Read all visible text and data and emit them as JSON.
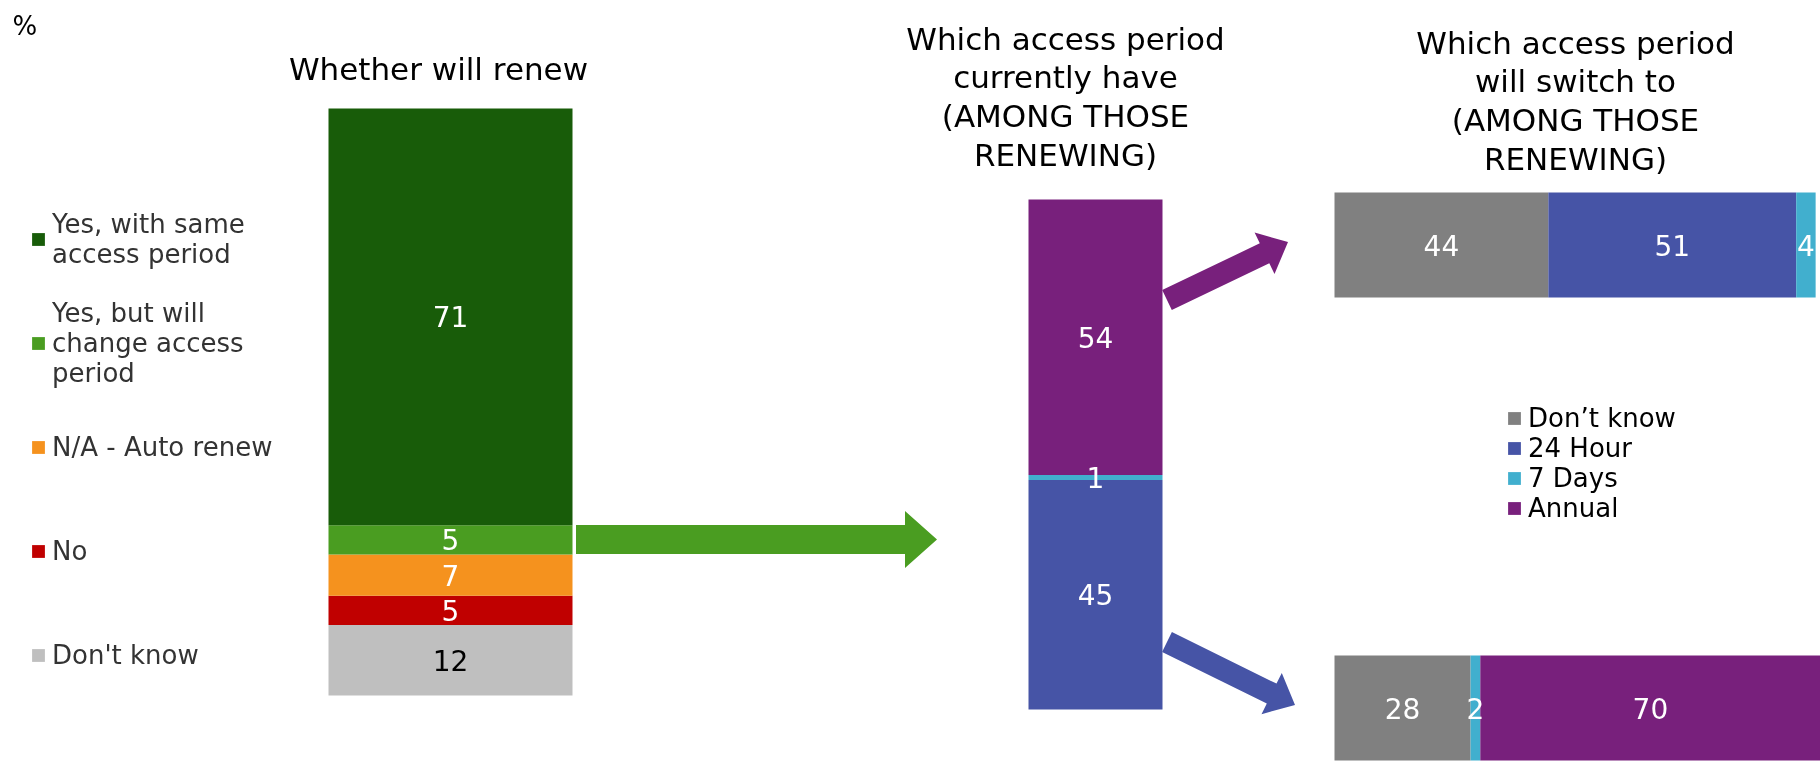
{
  "chart_data": [
    {
      "type": "bar",
      "title": "Whether will renew",
      "categories": [
        null
      ],
      "stacked": true,
      "series": [
        {
          "name": "Don't know",
          "color": "#bfbfbf",
          "values": [
            12
          ]
        },
        {
          "name": "No",
          "color": "#c00000",
          "values": [
            5
          ]
        },
        {
          "name": "N/A - Auto renew",
          "color": "#f5921e",
          "values": [
            7
          ]
        },
        {
          "name": "Yes, but will change access period",
          "color": "#4a9d21",
          "values": [
            5
          ]
        },
        {
          "name": "Yes, with same access period",
          "color": "#185c09",
          "values": [
            71
          ]
        }
      ],
      "data_labels": true,
      "legend": "left",
      "tick_labels": false,
      "annotations": [
        "%"
      ]
    },
    {
      "type": "bar",
      "title": "Which access period currently have (AMONG THOSE RENEWING)",
      "categories": [
        null
      ],
      "stacked": true,
      "series": [
        {
          "color": "#4654a6",
          "values": [
            45
          ]
        },
        {
          "color": "#41afce",
          "values": [
            1
          ]
        },
        {
          "color": "#78207c",
          "values": [
            54
          ]
        }
      ],
      "data_labels": true,
      "tick_labels": false
    },
    {
      "type": "bar",
      "orientation": "horizontal",
      "title": "Which access period will switch to (AMONG THOSE RENEWING)",
      "categories": [
        null,
        null
      ],
      "stacked": true,
      "series": [
        {
          "name": "Don’t know",
          "color": "#808080",
          "values": [
            44,
            28
          ]
        },
        {
          "name": "24 Hour",
          "color": "#4654a6",
          "values": [
            51,
            null
          ]
        },
        {
          "name": "7 Days",
          "color": "#41afce",
          "values": [
            4,
            2
          ]
        },
        {
          "name": "Annual",
          "color": "#78207c",
          "values": [
            null,
            70
          ]
        }
      ],
      "data_labels": true,
      "legend": "center",
      "tick_labels": false
    }
  ]
}
